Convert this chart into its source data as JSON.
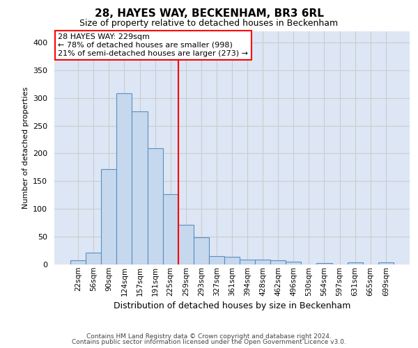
{
  "title": "28, HAYES WAY, BECKENHAM, BR3 6RL",
  "subtitle": "Size of property relative to detached houses in Beckenham",
  "xlabel": "Distribution of detached houses by size in Beckenham",
  "ylabel": "Number of detached properties",
  "bar_labels": [
    "22sqm",
    "56sqm",
    "90sqm",
    "124sqm",
    "157sqm",
    "191sqm",
    "225sqm",
    "259sqm",
    "293sqm",
    "327sqm",
    "361sqm",
    "394sqm",
    "428sqm",
    "462sqm",
    "496sqm",
    "530sqm",
    "564sqm",
    "597sqm",
    "631sqm",
    "665sqm",
    "699sqm"
  ],
  "bar_values": [
    7,
    21,
    172,
    308,
    276,
    210,
    127,
    72,
    49,
    15,
    14,
    9,
    9,
    7,
    5,
    0,
    3,
    0,
    4,
    0,
    4
  ],
  "bar_color": "#c5d8ee",
  "bar_edge_color": "#5a8fc0",
  "annotation_line1": "28 HAYES WAY: 229sqm",
  "annotation_line2": "← 78% of detached houses are smaller (998)",
  "annotation_line3": "21% of semi-detached houses are larger (273) →",
  "annotation_box_facecolor": "white",
  "annotation_box_edge_color": "red",
  "vline_color": "red",
  "ylim": [
    0,
    420
  ],
  "yticks": [
    0,
    50,
    100,
    150,
    200,
    250,
    300,
    350,
    400
  ],
  "grid_color": "#cccccc",
  "bg_color": "#dce6f5",
  "footer_line1": "Contains HM Land Registry data © Crown copyright and database right 2024.",
  "footer_line2": "Contains public sector information licensed under the Open Government Licence v3.0."
}
